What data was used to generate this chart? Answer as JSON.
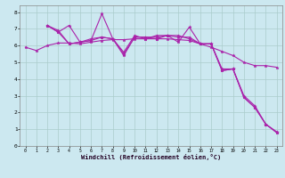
{
  "xlabel": "Windchill (Refroidissement éolien,°C)",
  "bg_color": "#cce8f0",
  "line_color": "#aa22aa",
  "grid_color": "#aacccc",
  "xlim": [
    -0.5,
    23.5
  ],
  "ylim": [
    0,
    8.4
  ],
  "xticks": [
    0,
    1,
    2,
    3,
    4,
    5,
    6,
    7,
    8,
    9,
    10,
    11,
    12,
    13,
    14,
    15,
    16,
    17,
    18,
    19,
    20,
    21,
    22,
    23
  ],
  "yticks": [
    0,
    1,
    2,
    3,
    4,
    5,
    6,
    7,
    8
  ],
  "lines": [
    {
      "x": [
        0,
        1,
        2,
        3,
        4,
        5,
        6,
        7,
        8,
        9,
        10,
        11,
        12,
        13,
        14,
        15,
        16,
        17,
        18,
        19,
        20,
        21,
        22,
        23
      ],
      "y": [
        5.9,
        5.7,
        6.0,
        6.15,
        6.15,
        6.1,
        6.2,
        6.3,
        6.35,
        6.35,
        6.4,
        6.4,
        6.4,
        6.4,
        6.35,
        6.3,
        6.1,
        5.9,
        5.65,
        5.4,
        5.0,
        4.8,
        4.8,
        4.7
      ]
    },
    {
      "x": [
        2,
        3,
        4,
        5,
        6,
        7,
        8,
        9,
        10,
        11,
        12,
        13,
        14,
        15,
        16,
        17,
        18,
        19,
        20,
        21,
        22,
        23
      ],
      "y": [
        7.2,
        6.8,
        7.2,
        6.2,
        6.3,
        7.9,
        6.4,
        5.4,
        6.5,
        6.5,
        6.4,
        6.6,
        6.2,
        7.1,
        6.1,
        6.1,
        4.6,
        4.6,
        3.0,
        2.4,
        1.3,
        0.85
      ]
    },
    {
      "x": [
        2,
        3,
        4,
        5,
        6,
        7,
        8,
        9,
        10,
        11,
        12,
        13,
        14,
        15,
        16,
        17,
        18,
        19,
        20,
        21,
        22,
        23
      ],
      "y": [
        7.2,
        6.9,
        6.1,
        6.2,
        6.4,
        6.5,
        6.4,
        5.6,
        6.6,
        6.4,
        6.6,
        6.6,
        6.6,
        6.4,
        6.1,
        6.1,
        4.5,
        4.6,
        2.9,
        2.3,
        1.3,
        0.8
      ]
    },
    {
      "x": [
        2,
        3,
        4,
        5,
        6,
        7,
        8,
        9,
        10,
        11,
        12,
        13,
        14,
        15,
        16,
        17,
        18,
        19,
        20,
        21,
        22,
        23
      ],
      "y": [
        7.2,
        6.8,
        6.1,
        6.2,
        6.3,
        6.5,
        6.4,
        5.5,
        6.5,
        6.5,
        6.5,
        6.6,
        6.5,
        6.5,
        6.1,
        6.1,
        4.5,
        4.6,
        2.9,
        2.3,
        1.3,
        0.8
      ]
    }
  ]
}
